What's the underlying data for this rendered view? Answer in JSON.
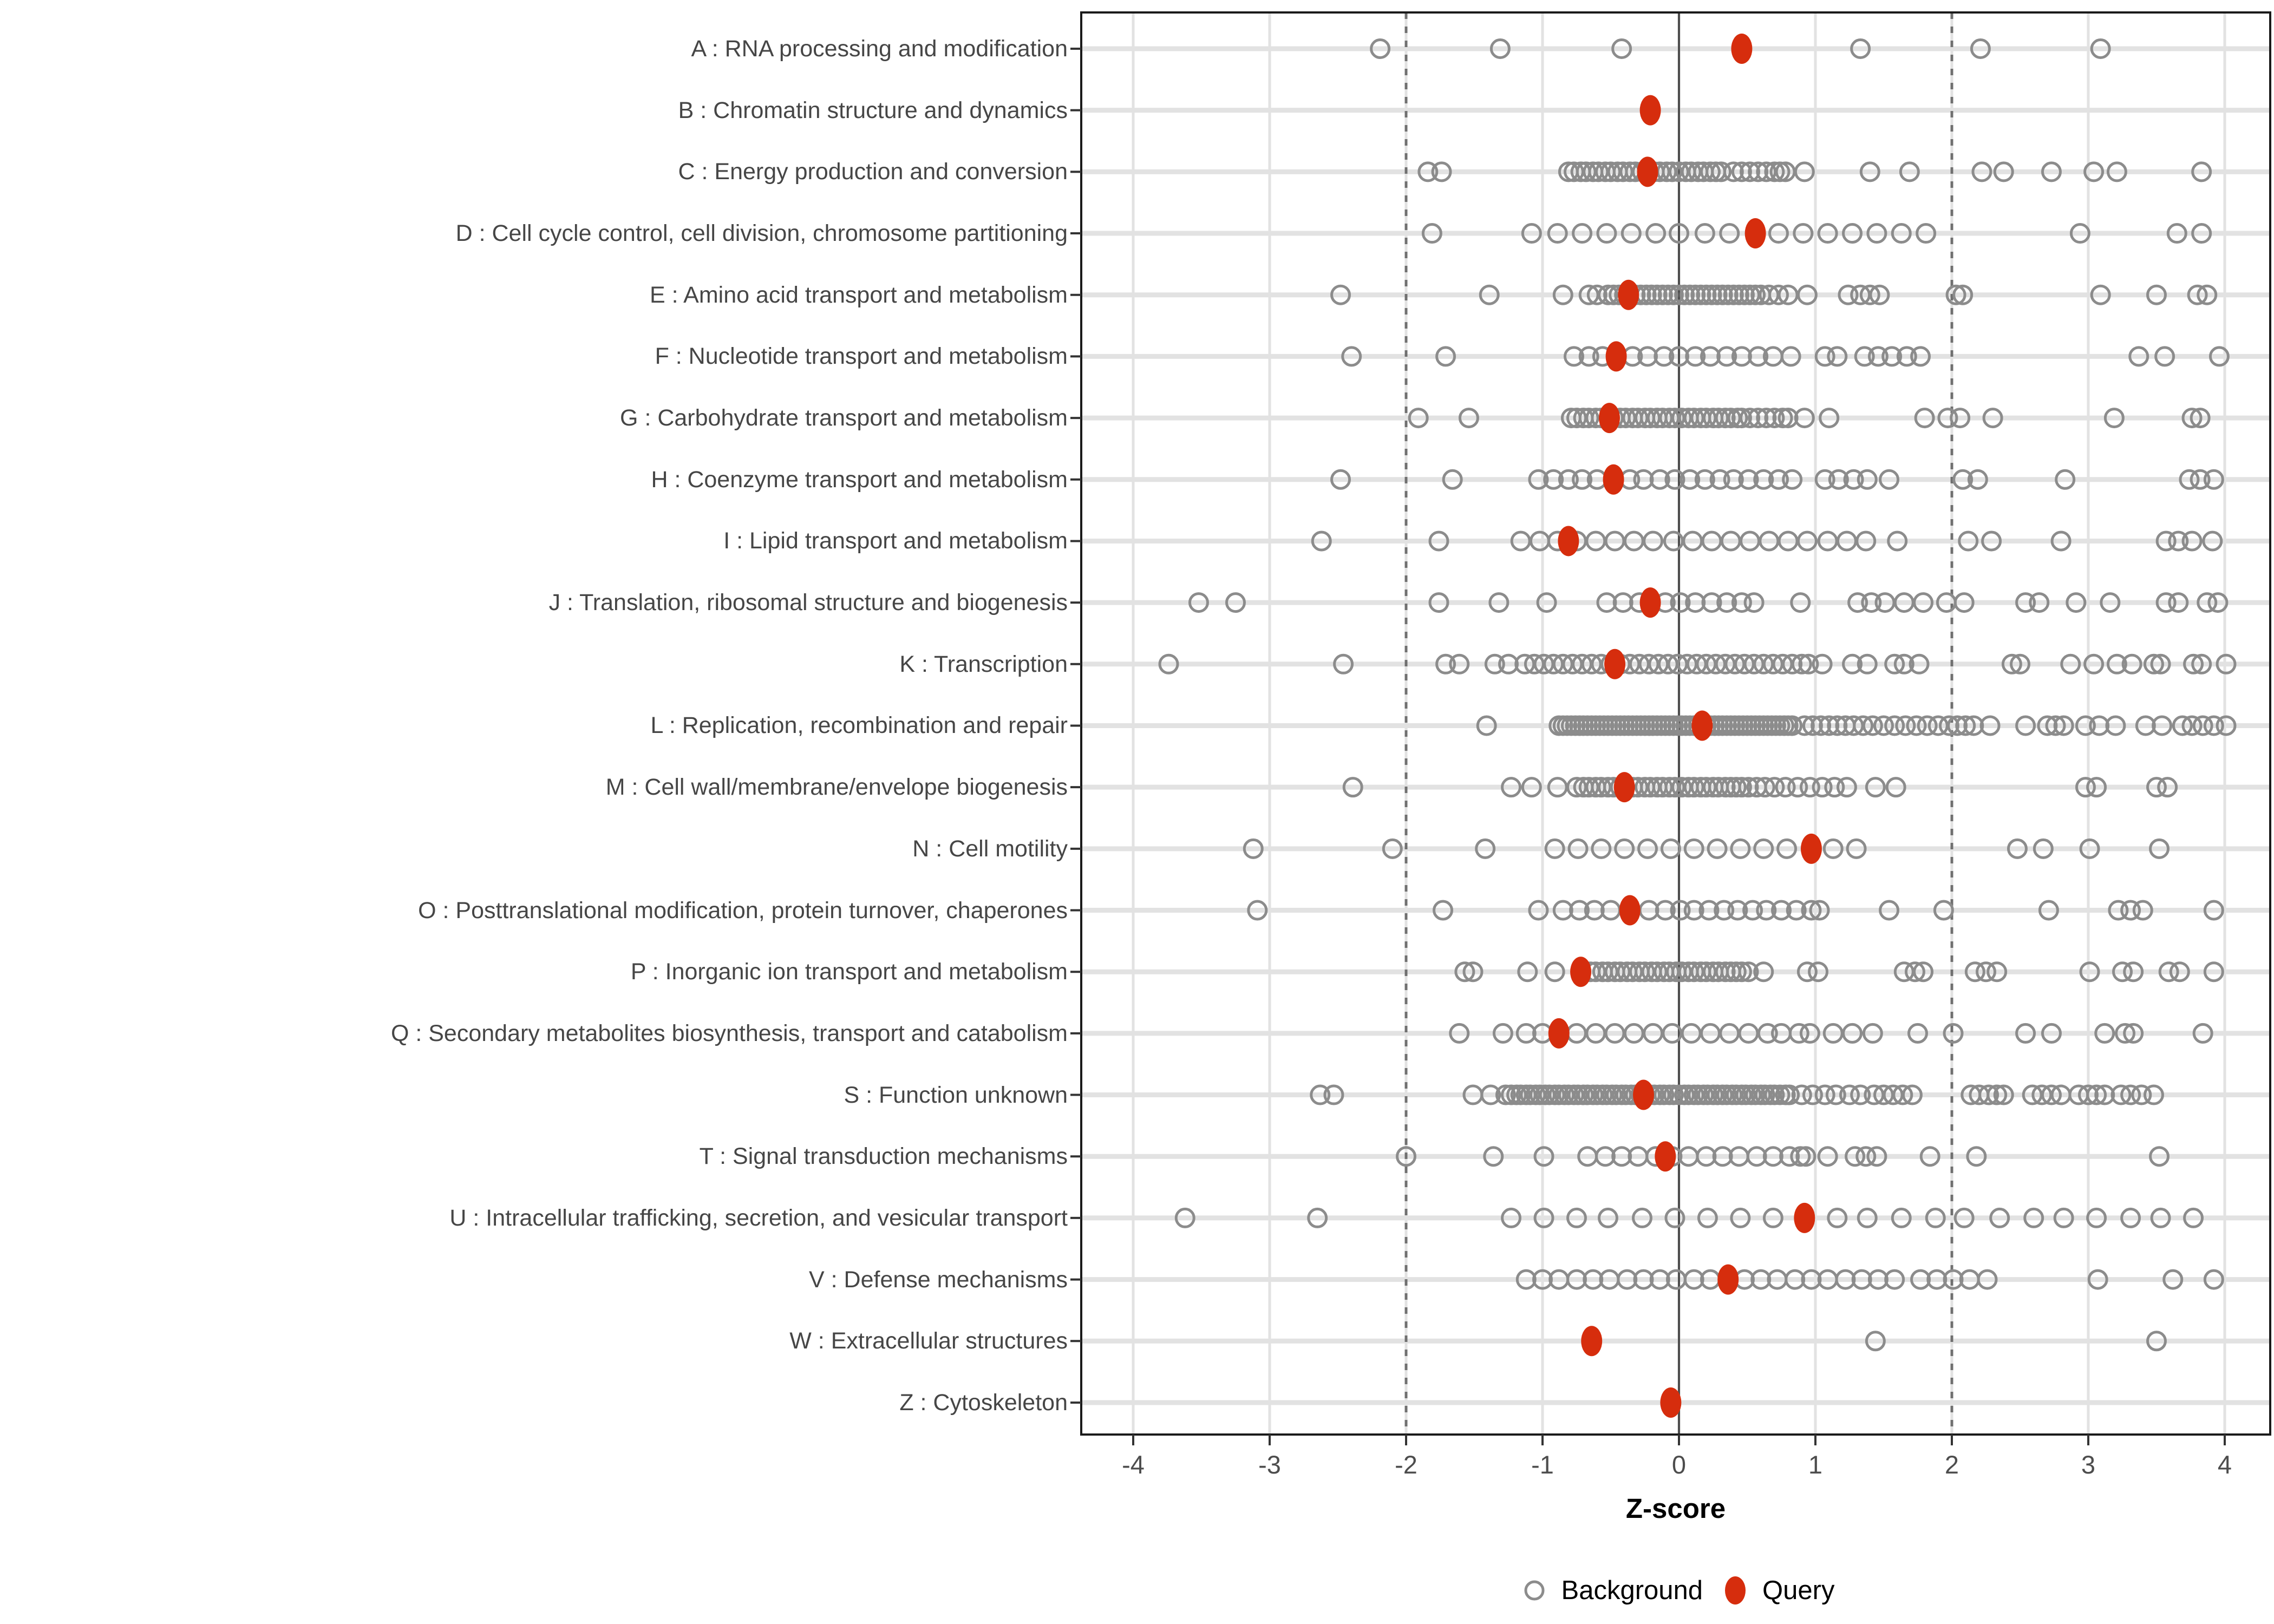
{
  "x_axis": {
    "title": "Z-score",
    "tick_labels": [
      "-4",
      "-3",
      "-2",
      "-1",
      "0",
      "1",
      "2",
      "3",
      "4"
    ]
  },
  "legend": {
    "background": "Background",
    "query": "Query"
  },
  "colors": {
    "query_fill": "#D62D0D",
    "background_stroke": "#8C8C8C",
    "grid": "#E2E2E2",
    "zero_line": "#4D4D4D",
    "threshold_line": "#707070",
    "panel_border": "#1A1A1A",
    "tick_mark": "#333333",
    "axis_text": "#4D4D4D",
    "category_text": "#464646"
  },
  "chart_data": {
    "type": "scatter",
    "title": "",
    "xlabel": "Z-score",
    "ylabel": "",
    "xlim": [
      -4.38,
      4.33
    ],
    "x_ticks": [
      -4,
      -3,
      -2,
      -1,
      0,
      1,
      2,
      3,
      4
    ],
    "grid": true,
    "reference_lines": {
      "solid": [
        0
      ],
      "dashed": [
        -2,
        2
      ]
    },
    "legend_position": "bottom",
    "series_names": [
      "Background",
      "Query"
    ],
    "categories": [
      {
        "code": "A",
        "label": "A : RNA processing and modification",
        "query": 0.46,
        "background": [
          -2.19,
          -1.31,
          -0.42,
          1.33,
          2.21,
          3.09
        ]
      },
      {
        "code": "B",
        "label": "B : Chromatin structure and dynamics",
        "query": -0.21,
        "background": []
      },
      {
        "code": "C",
        "label": "C : Energy production and conversion",
        "query": -0.23,
        "background": [
          -1.84,
          -1.74,
          -0.81,
          -0.77,
          -0.72,
          -0.68,
          -0.63,
          -0.59,
          -0.54,
          -0.5,
          -0.45,
          -0.41,
          -0.36,
          -0.32,
          -0.27,
          -0.18,
          -0.14,
          -0.09,
          -0.05,
          0.0,
          0.05,
          0.09,
          0.14,
          0.18,
          0.23,
          0.27,
          0.31,
          0.4,
          0.46,
          0.52,
          0.58,
          0.64,
          0.7,
          0.74,
          0.78,
          0.92,
          1.4,
          1.69,
          2.22,
          2.38,
          2.73,
          3.04,
          3.21,
          3.83
        ]
      },
      {
        "code": "D",
        "label": "D : Cell cycle control, cell division, chromosome partitioning",
        "query": 0.56,
        "background": [
          -1.81,
          -1.08,
          -0.89,
          -0.71,
          -0.53,
          -0.35,
          -0.17,
          0.0,
          0.19,
          0.37,
          0.73,
          0.91,
          1.09,
          1.27,
          1.45,
          1.63,
          1.81,
          2.94,
          3.65,
          3.83
        ]
      },
      {
        "code": "E",
        "label": "E : Amino acid transport and metabolism",
        "query": -0.37,
        "background": [
          -2.48,
          -1.39,
          -0.85,
          -0.66,
          -0.6,
          -0.52,
          -0.48,
          -0.44,
          -0.4,
          -0.32,
          -0.28,
          -0.24,
          -0.2,
          -0.16,
          -0.12,
          -0.08,
          -0.04,
          0.0,
          0.04,
          0.08,
          0.12,
          0.16,
          0.2,
          0.24,
          0.28,
          0.32,
          0.36,
          0.4,
          0.44,
          0.48,
          0.52,
          0.56,
          0.6,
          0.66,
          0.73,
          0.8,
          0.94,
          1.24,
          1.33,
          1.4,
          1.47,
          2.03,
          2.08,
          3.09,
          3.5,
          3.8,
          3.87
        ]
      },
      {
        "code": "F",
        "label": "F : Nucleotide transport and metabolism",
        "query": -0.46,
        "background": [
          -2.4,
          -1.71,
          -0.77,
          -0.66,
          -0.56,
          -0.34,
          -0.23,
          -0.11,
          0.0,
          0.12,
          0.23,
          0.35,
          0.46,
          0.58,
          0.69,
          0.82,
          1.07,
          1.16,
          1.36,
          1.46,
          1.56,
          1.67,
          1.77,
          3.37,
          3.56,
          3.96
        ]
      },
      {
        "code": "G",
        "label": "G : Carbohydrate transport and metabolism",
        "query": -0.51,
        "background": [
          -1.91,
          -1.54,
          -0.79,
          -0.75,
          -0.7,
          -0.66,
          -0.61,
          -0.57,
          -0.48,
          -0.43,
          -0.39,
          -0.34,
          -0.3,
          -0.25,
          -0.21,
          -0.16,
          -0.12,
          -0.07,
          -0.03,
          0.02,
          0.07,
          0.11,
          0.16,
          0.2,
          0.25,
          0.29,
          0.34,
          0.38,
          0.43,
          0.46,
          0.52,
          0.58,
          0.64,
          0.7,
          0.76,
          0.8,
          0.92,
          1.1,
          1.8,
          1.97,
          2.06,
          2.3,
          3.19,
          3.76,
          3.82
        ]
      },
      {
        "code": "H",
        "label": "H : Coenzyme transport and metabolism",
        "query": -0.48,
        "background": [
          -2.48,
          -1.66,
          -1.03,
          -0.92,
          -0.81,
          -0.71,
          -0.6,
          -0.36,
          -0.26,
          -0.14,
          -0.03,
          0.08,
          0.19,
          0.3,
          0.4,
          0.51,
          0.62,
          0.73,
          0.83,
          1.07,
          1.17,
          1.28,
          1.38,
          1.54,
          2.08,
          2.19,
          2.83,
          3.74,
          3.82,
          3.92
        ]
      },
      {
        "code": "I",
        "label": "I : Lipid transport and metabolism",
        "query": -0.81,
        "background": [
          -2.62,
          -1.76,
          -1.16,
          -1.02,
          -0.89,
          -0.75,
          -0.61,
          -0.47,
          -0.33,
          -0.19,
          -0.04,
          0.1,
          0.24,
          0.38,
          0.52,
          0.66,
          0.8,
          0.94,
          1.09,
          1.23,
          1.37,
          1.6,
          2.12,
          2.29,
          2.8,
          3.57,
          3.66,
          3.76,
          3.91
        ]
      },
      {
        "code": "J",
        "label": "J : Translation, ribosomal structure and biogenesis",
        "query": -0.21,
        "background": [
          -3.52,
          -3.25,
          -1.76,
          -1.32,
          -0.97,
          -0.53,
          -0.41,
          -0.29,
          -0.1,
          0.01,
          0.12,
          0.24,
          0.35,
          0.46,
          0.55,
          0.89,
          1.31,
          1.41,
          1.51,
          1.65,
          1.79,
          1.96,
          2.09,
          2.54,
          2.64,
          2.91,
          3.16,
          3.57,
          3.66,
          3.87,
          3.95
        ]
      },
      {
        "code": "K",
        "label": "K : Transcription",
        "query": -0.47,
        "background": [
          -3.74,
          -2.46,
          -1.71,
          -1.61,
          -1.35,
          -1.25,
          -1.13,
          -1.06,
          -0.99,
          -0.92,
          -0.85,
          -0.78,
          -0.71,
          -0.64,
          -0.57,
          -0.5,
          -0.43,
          -0.36,
          -0.29,
          -0.22,
          -0.15,
          -0.08,
          -0.01,
          0.06,
          0.13,
          0.2,
          0.27,
          0.34,
          0.41,
          0.48,
          0.55,
          0.62,
          0.69,
          0.76,
          0.83,
          0.9,
          0.95,
          1.05,
          1.27,
          1.38,
          1.58,
          1.65,
          1.76,
          2.44,
          2.5,
          2.87,
          3.04,
          3.21,
          3.32,
          3.48,
          3.53,
          3.77,
          3.83,
          4.01
        ]
      },
      {
        "code": "L",
        "label": "L : Replication, recombination and repair",
        "query": 0.17,
        "background": [
          -1.41,
          -0.88,
          -0.85,
          -0.82,
          -0.79,
          -0.76,
          -0.73,
          -0.7,
          -0.67,
          -0.64,
          -0.61,
          -0.58,
          -0.55,
          -0.52,
          -0.49,
          -0.46,
          -0.43,
          -0.4,
          -0.37,
          -0.34,
          -0.31,
          -0.28,
          -0.25,
          -0.22,
          -0.19,
          -0.16,
          -0.13,
          -0.1,
          -0.07,
          -0.04,
          -0.01,
          0.02,
          0.05,
          0.08,
          0.11,
          0.14,
          0.2,
          0.23,
          0.26,
          0.29,
          0.32,
          0.35,
          0.38,
          0.41,
          0.44,
          0.47,
          0.5,
          0.53,
          0.56,
          0.59,
          0.62,
          0.65,
          0.68,
          0.71,
          0.74,
          0.77,
          0.8,
          0.83,
          0.92,
          0.98,
          1.04,
          1.1,
          1.16,
          1.22,
          1.28,
          1.35,
          1.42,
          1.5,
          1.58,
          1.66,
          1.74,
          1.82,
          1.9,
          1.98,
          2.04,
          2.1,
          2.16,
          2.28,
          2.54,
          2.7,
          2.76,
          2.82,
          2.98,
          3.08,
          3.2,
          3.42,
          3.54,
          3.69,
          3.76,
          3.84,
          3.92,
          4.01
        ]
      },
      {
        "code": "M",
        "label": "M : Cell wall/membrane/envelope biogenesis",
        "query": -0.4,
        "background": [
          -2.39,
          -1.23,
          -1.08,
          -0.89,
          -0.75,
          -0.7,
          -0.66,
          -0.61,
          -0.57,
          -0.52,
          -0.48,
          -0.43,
          -0.34,
          -0.3,
          -0.25,
          -0.21,
          -0.16,
          -0.12,
          -0.07,
          -0.03,
          0.02,
          0.07,
          0.11,
          0.16,
          0.2,
          0.25,
          0.29,
          0.34,
          0.38,
          0.42,
          0.46,
          0.51,
          0.57,
          0.63,
          0.7,
          0.78,
          0.87,
          0.96,
          1.05,
          1.14,
          1.23,
          1.44,
          1.59,
          2.98,
          3.06,
          3.5,
          3.58
        ]
      },
      {
        "code": "N",
        "label": "N : Cell motility",
        "query": 0.97,
        "background": [
          -3.12,
          -2.1,
          -1.42,
          -0.91,
          -0.74,
          -0.57,
          -0.4,
          -0.23,
          -0.06,
          0.11,
          0.28,
          0.45,
          0.62,
          0.79,
          1.13,
          1.3,
          2.48,
          2.67,
          3.01,
          3.52
        ]
      },
      {
        "code": "O",
        "label": "O : Posttranslational modification, protein turnover, chaperones",
        "query": -0.36,
        "background": [
          -3.09,
          -1.73,
          -1.03,
          -0.85,
          -0.73,
          -0.62,
          -0.5,
          -0.22,
          -0.1,
          0.01,
          0.11,
          0.22,
          0.33,
          0.43,
          0.54,
          0.64,
          0.75,
          0.86,
          0.97,
          1.03,
          1.54,
          1.94,
          2.71,
          3.22,
          3.31,
          3.4,
          3.92
        ]
      },
      {
        "code": "P",
        "label": "P : Inorganic ion transport and metabolism",
        "query": -0.72,
        "background": [
          -1.57,
          -1.51,
          -1.11,
          -0.91,
          -0.65,
          -0.61,
          -0.56,
          -0.52,
          -0.47,
          -0.43,
          -0.38,
          -0.34,
          -0.29,
          -0.25,
          -0.2,
          -0.16,
          -0.11,
          -0.07,
          -0.02,
          0.02,
          0.07,
          0.11,
          0.16,
          0.2,
          0.25,
          0.29,
          0.34,
          0.38,
          0.42,
          0.46,
          0.51,
          0.62,
          0.94,
          1.02,
          1.65,
          1.73,
          1.79,
          2.17,
          2.25,
          2.33,
          3.01,
          3.25,
          3.33,
          3.59,
          3.67,
          3.92
        ]
      },
      {
        "code": "Q",
        "label": "Q : Secondary metabolites biosynthesis, transport and catabolism",
        "query": -0.88,
        "background": [
          -1.61,
          -1.29,
          -1.12,
          -1.0,
          -0.75,
          -0.61,
          -0.47,
          -0.33,
          -0.19,
          -0.05,
          0.09,
          0.23,
          0.37,
          0.51,
          0.65,
          0.75,
          0.88,
          0.96,
          1.13,
          1.27,
          1.42,
          1.75,
          2.01,
          2.54,
          2.73,
          3.12,
          3.27,
          3.33,
          3.84
        ]
      },
      {
        "code": "S",
        "label": "S : Function unknown",
        "query": -0.26,
        "background": [
          -2.63,
          -2.53,
          -1.51,
          -1.38,
          -1.27,
          -1.23,
          -1.19,
          -1.16,
          -1.12,
          -1.09,
          -1.05,
          -1.02,
          -0.98,
          -0.95,
          -0.91,
          -0.88,
          -0.84,
          -0.81,
          -0.77,
          -0.74,
          -0.7,
          -0.67,
          -0.63,
          -0.6,
          -0.56,
          -0.53,
          -0.49,
          -0.46,
          -0.42,
          -0.39,
          -0.35,
          -0.32,
          -0.28,
          -0.25,
          -0.21,
          -0.18,
          -0.14,
          -0.11,
          -0.07,
          -0.04,
          0.0,
          0.04,
          0.07,
          0.11,
          0.14,
          0.18,
          0.21,
          0.25,
          0.28,
          0.32,
          0.35,
          0.39,
          0.42,
          0.46,
          0.49,
          0.53,
          0.56,
          0.6,
          0.63,
          0.67,
          0.7,
          0.74,
          0.78,
          0.81,
          0.9,
          0.98,
          1.07,
          1.15,
          1.25,
          1.33,
          1.43,
          1.5,
          1.57,
          1.64,
          1.71,
          2.14,
          2.2,
          2.27,
          2.33,
          2.38,
          2.59,
          2.66,
          2.73,
          2.8,
          2.93,
          3.0,
          3.06,
          3.12,
          3.24,
          3.31,
          3.39,
          3.48
        ]
      },
      {
        "code": "T",
        "label": "T : Signal transduction mechanisms",
        "query": -0.1,
        "background": [
          -2.0,
          -1.36,
          -0.99,
          -0.67,
          -0.54,
          -0.42,
          -0.3,
          -0.17,
          -0.05,
          0.07,
          0.2,
          0.32,
          0.44,
          0.57,
          0.69,
          0.81,
          0.89,
          0.93,
          1.09,
          1.29,
          1.37,
          1.45,
          1.84,
          2.18,
          3.52
        ]
      },
      {
        "code": "U",
        "label": "U : Intracellular trafficking, secretion, and vesicular transport",
        "query": 0.92,
        "background": [
          -3.62,
          -2.65,
          -1.23,
          -0.99,
          -0.75,
          -0.52,
          -0.27,
          -0.03,
          0.21,
          0.45,
          0.69,
          1.16,
          1.38,
          1.63,
          1.88,
          2.09,
          2.35,
          2.6,
          2.82,
          3.06,
          3.31,
          3.53,
          3.77
        ]
      },
      {
        "code": "V",
        "label": "V : Defense mechanisms",
        "query": 0.36,
        "background": [
          -1.12,
          -1.0,
          -0.88,
          -0.75,
          -0.63,
          -0.51,
          -0.38,
          -0.26,
          -0.14,
          -0.02,
          0.11,
          0.23,
          0.48,
          0.6,
          0.72,
          0.85,
          0.97,
          1.09,
          1.22,
          1.34,
          1.46,
          1.58,
          1.77,
          1.89,
          2.01,
          2.13,
          2.26,
          3.07,
          3.62,
          3.92
        ]
      },
      {
        "code": "W",
        "label": "W : Extracellular structures",
        "query": -0.64,
        "background": [
          1.44,
          3.5
        ]
      },
      {
        "code": "Z",
        "label": "Z : Cytoskeleton",
        "query": -0.06,
        "background": []
      }
    ]
  }
}
